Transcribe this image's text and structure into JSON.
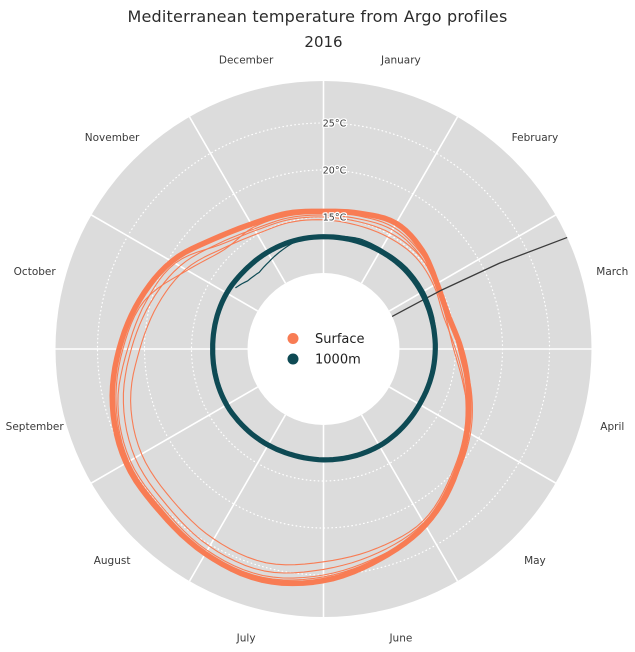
{
  "title": "Mediterranean temperature from Argo profiles",
  "subtitle": "2016",
  "legend": [
    {
      "label": "Surface",
      "color": "#F87C54"
    },
    {
      "label": "1000m",
      "color": "#0E4A54"
    }
  ],
  "months": [
    "January",
    "February",
    "March",
    "April",
    "May",
    "June",
    "July",
    "August",
    "September",
    "October",
    "November",
    "December"
  ],
  "radial_ticks": [
    {
      "temp": 15,
      "label": "15°C"
    },
    {
      "temp": 20,
      "label": "20°C"
    },
    {
      "temp": 25,
      "label": "25°C"
    }
  ],
  "colors": {
    "surface": "#F87C54",
    "deep": "#0E4A54",
    "disc": "#DCDCDC",
    "grid": "#FFFFFF",
    "outlier": "#3C3C3C",
    "text": "#3A3A3A",
    "title_text": "#2B2B2B"
  },
  "chart_data": {
    "type": "line",
    "coordinate_system": "polar",
    "angle_mapping": "day of year, degrees clockwise from top (Jan 1 at top)",
    "radial_axis": {
      "unit": "°C",
      "min": 9,
      "max": 29.5,
      "ticks": [
        15,
        20,
        25
      ],
      "grid": "dotted"
    },
    "theta_step_degrees": 15,
    "series": [
      {
        "name": "surface-float-1",
        "group": "surface",
        "kind": "closed",
        "width": 1.1,
        "values": [
          14.7,
          14.6,
          14.7,
          14.8,
          14.5,
          14.2,
          15.0,
          16.5,
          18.3,
          20.1,
          22.1,
          22.9,
          23.6,
          24.5,
          24.3,
          23.7,
          23.3,
          22.2,
          20.5,
          19.2,
          17.9,
          16.1,
          15.1,
          14.9
        ]
      },
      {
        "name": "surface-float-2",
        "group": "surface",
        "kind": "closed",
        "width": 1.1,
        "values": [
          15.2,
          15.3,
          15.6,
          15.3,
          14.7,
          14.4,
          14.8,
          16.4,
          18.8,
          20.4,
          22.3,
          23.4,
          24.4,
          25.4,
          25.2,
          24.5,
          24.1,
          23.0,
          21.4,
          20.0,
          18.6,
          16.8,
          15.7,
          15.4
        ]
      },
      {
        "name": "surface-float-3",
        "group": "surface",
        "kind": "closed",
        "width": 1.1,
        "values": [
          15.0,
          15.0,
          15.2,
          15.2,
          14.9,
          14.9,
          15.3,
          16.7,
          18.5,
          20.8,
          22.8,
          23.8,
          25.0,
          25.9,
          25.7,
          25.0,
          24.7,
          23.6,
          21.8,
          20.5,
          19.2,
          16.6,
          15.5,
          15.2
        ]
      },
      {
        "name": "surface-float-4",
        "group": "surface",
        "kind": "closed",
        "width": 1.1,
        "values": [
          15.4,
          15.6,
          15.9,
          15.5,
          15.0,
          14.6,
          15.4,
          17.2,
          19.0,
          20.7,
          22.5,
          23.9,
          25.2,
          26.1,
          25.9,
          25.2,
          24.9,
          23.8,
          22.3,
          20.7,
          17.7,
          15.9,
          15.9,
          15.6
        ]
      },
      {
        "name": "surface-mean",
        "group": "surface",
        "kind": "closed",
        "width": 5.5,
        "values": [
          15.6,
          15.9,
          16.4,
          15.8,
          14.9,
          14.7,
          15.6,
          16.9,
          18.6,
          20.5,
          22.6,
          24.1,
          25.6,
          26.4,
          26.1,
          25.5,
          25.2,
          24.2,
          22.7,
          21.2,
          19.6,
          17.5,
          16.3,
          15.9
        ]
      },
      {
        "name": "outlier-profile",
        "group": "other",
        "kind": "straight",
        "width": 1.3,
        "color": "#3C3C3C",
        "theta": [
          64.6,
          63.5,
          64.0,
          65.4
        ],
        "values": [
          9.1,
          14.8,
          21.8,
          29.4
        ]
      },
      {
        "name": "deep-float-oct-dec",
        "group": "deep",
        "kind": "open",
        "width": 1.2,
        "theta": [
          305,
          312,
          320,
          328,
          336,
          344,
          351,
          358
        ],
        "values": [
          12.35,
          11.8,
          11.6,
          11.9,
          12.3,
          12.7,
          13.05,
          13.0
        ]
      },
      {
        "name": "deep-float-jan-apr",
        "group": "deep",
        "kind": "open",
        "width": 1.2,
        "theta": [
          5,
          18,
          32,
          46,
          60,
          74,
          86,
          98
        ],
        "values": [
          13.0,
          13.3,
          13.25,
          13.35,
          13.3,
          13.15,
          12.95,
          12.85
        ]
      },
      {
        "name": "deep-mean",
        "group": "deep",
        "kind": "closed",
        "width": 5.2,
        "values": [
          12.9,
          12.95,
          13.0,
          13.05,
          13.0,
          12.9,
          12.85,
          12.8,
          12.75,
          12.8,
          12.85,
          12.8,
          12.75,
          12.7,
          12.75,
          12.8,
          12.85,
          12.8,
          12.75,
          12.8,
          12.85,
          12.8,
          12.85,
          12.9
        ]
      }
    ]
  }
}
